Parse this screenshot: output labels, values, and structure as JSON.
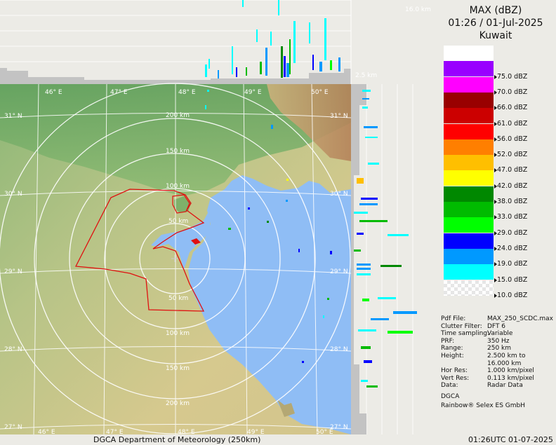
{
  "product": {
    "title": "MAX (dBZ)",
    "datetime": "01:26 / 01-Jul-2025",
    "location": "Kuwait"
  },
  "color_scale": [
    {
      "color": "#ffffff",
      "label": ""
    },
    {
      "color": "#9900ff",
      "label": "75.0 dBZ"
    },
    {
      "color": "#ff00ff",
      "label": "70.0 dBZ"
    },
    {
      "color": "#990000",
      "label": "66.0 dBZ"
    },
    {
      "color": "#cc0000",
      "label": "61.0 dBZ"
    },
    {
      "color": "#ff0000",
      "label": "56.0 dBZ"
    },
    {
      "color": "#ff7f00",
      "label": "52.0 dBZ"
    },
    {
      "color": "#ffbf00",
      "label": "47.0 dBZ"
    },
    {
      "color": "#ffff00",
      "label": "42.0 dBZ"
    },
    {
      "color": "#008800",
      "label": "38.0 dBZ"
    },
    {
      "color": "#00bb00",
      "label": "33.0 dBZ"
    },
    {
      "color": "#00ff00",
      "label": "29.0 dBZ"
    },
    {
      "color": "#0000ff",
      "label": "24.0 dBZ"
    },
    {
      "color": "#0099ff",
      "label": "19.0 dBZ"
    },
    {
      "color": "#00ffff",
      "label": "15.0 dBZ"
    },
    {
      "color": "checker",
      "label": "10.0 dBZ"
    }
  ],
  "info": [
    {
      "key": "Pdf File:",
      "value": "MAX_250_SCDC.max"
    },
    {
      "key": "Clutter Filter:",
      "value": "DFT 6"
    },
    {
      "key": "Time sampling:",
      "value": "Variable"
    },
    {
      "key": "PRF:",
      "value": "350 Hz"
    },
    {
      "key": "Range:",
      "value": "250 km"
    },
    {
      "key": "Height:",
      "value": "2.500 km to"
    },
    {
      "key": "",
      "value": "16.000 km"
    },
    {
      "key": "Hor Res:",
      "value": "1.000 km/pixel"
    },
    {
      "key": "Vert Res:",
      "value": "0.113 km/pixel"
    },
    {
      "key": "Data:",
      "value": "Radar Data"
    }
  ],
  "credits": [
    "DGCA",
    "Rainbow® Selex ES GmbH"
  ],
  "footer": {
    "left": "DGCA Department of Meteorology (250km)",
    "right": "01:26UTC 01-07-2025"
  },
  "map": {
    "lon_labels": [
      "46° E",
      "47° E",
      "48° E",
      "49° E",
      "50° E"
    ],
    "lat_labels": [
      "31° N",
      "30° N",
      "29° N",
      "28° N",
      "27° N"
    ],
    "range_rings": [
      "50 km",
      "100 km",
      "150 km",
      "200 km"
    ],
    "height_top": "16.0 km",
    "height_bottom": "2.5 km"
  },
  "colors": {
    "land_light": "#d9c890",
    "land_green": "#7fb06a",
    "sea": "#8fbdf5",
    "border": "#e01010",
    "panel_bg": "#ecebe6"
  }
}
